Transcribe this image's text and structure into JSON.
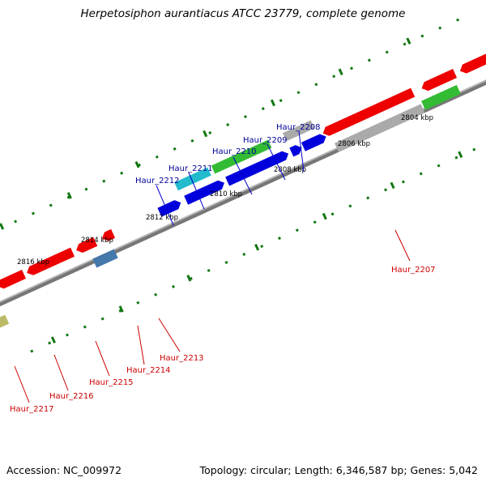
{
  "title": "Herpetosiphon aurantiacus ATCC 23779, complete genome",
  "footer": {
    "accession": "Accession: NC_009972",
    "topology": "Topology: circular; Length: 6,346,587 bp; Genes: 5,042"
  },
  "kbp_labels": [
    "2804 kbp",
    "2806 kbp",
    "2808 kbp",
    "2810 kbp",
    "2812 kbp",
    "2814 kbp",
    "2816 kbp"
  ],
  "genes_upper": [
    "Haur_2208",
    "Haur_2209",
    "Haur_2210",
    "Haur_2211",
    "Haur_2212"
  ],
  "genes_lower": [
    "Haur_2207",
    "Haur_2213",
    "Haur_2214",
    "Haur_2215",
    "Haur_2216",
    "Haur_2217"
  ],
  "colors": {
    "red": "#ee0000",
    "blue": "#0000dd",
    "green": "#33bb33",
    "cyan": "#22bbcc",
    "gray": "#aaaaaa",
    "steelblue": "#4477aa",
    "olive": "#bbbb66",
    "upper_label": "#000099",
    "lower_label": "#cc0000",
    "ticks": "#117711"
  }
}
